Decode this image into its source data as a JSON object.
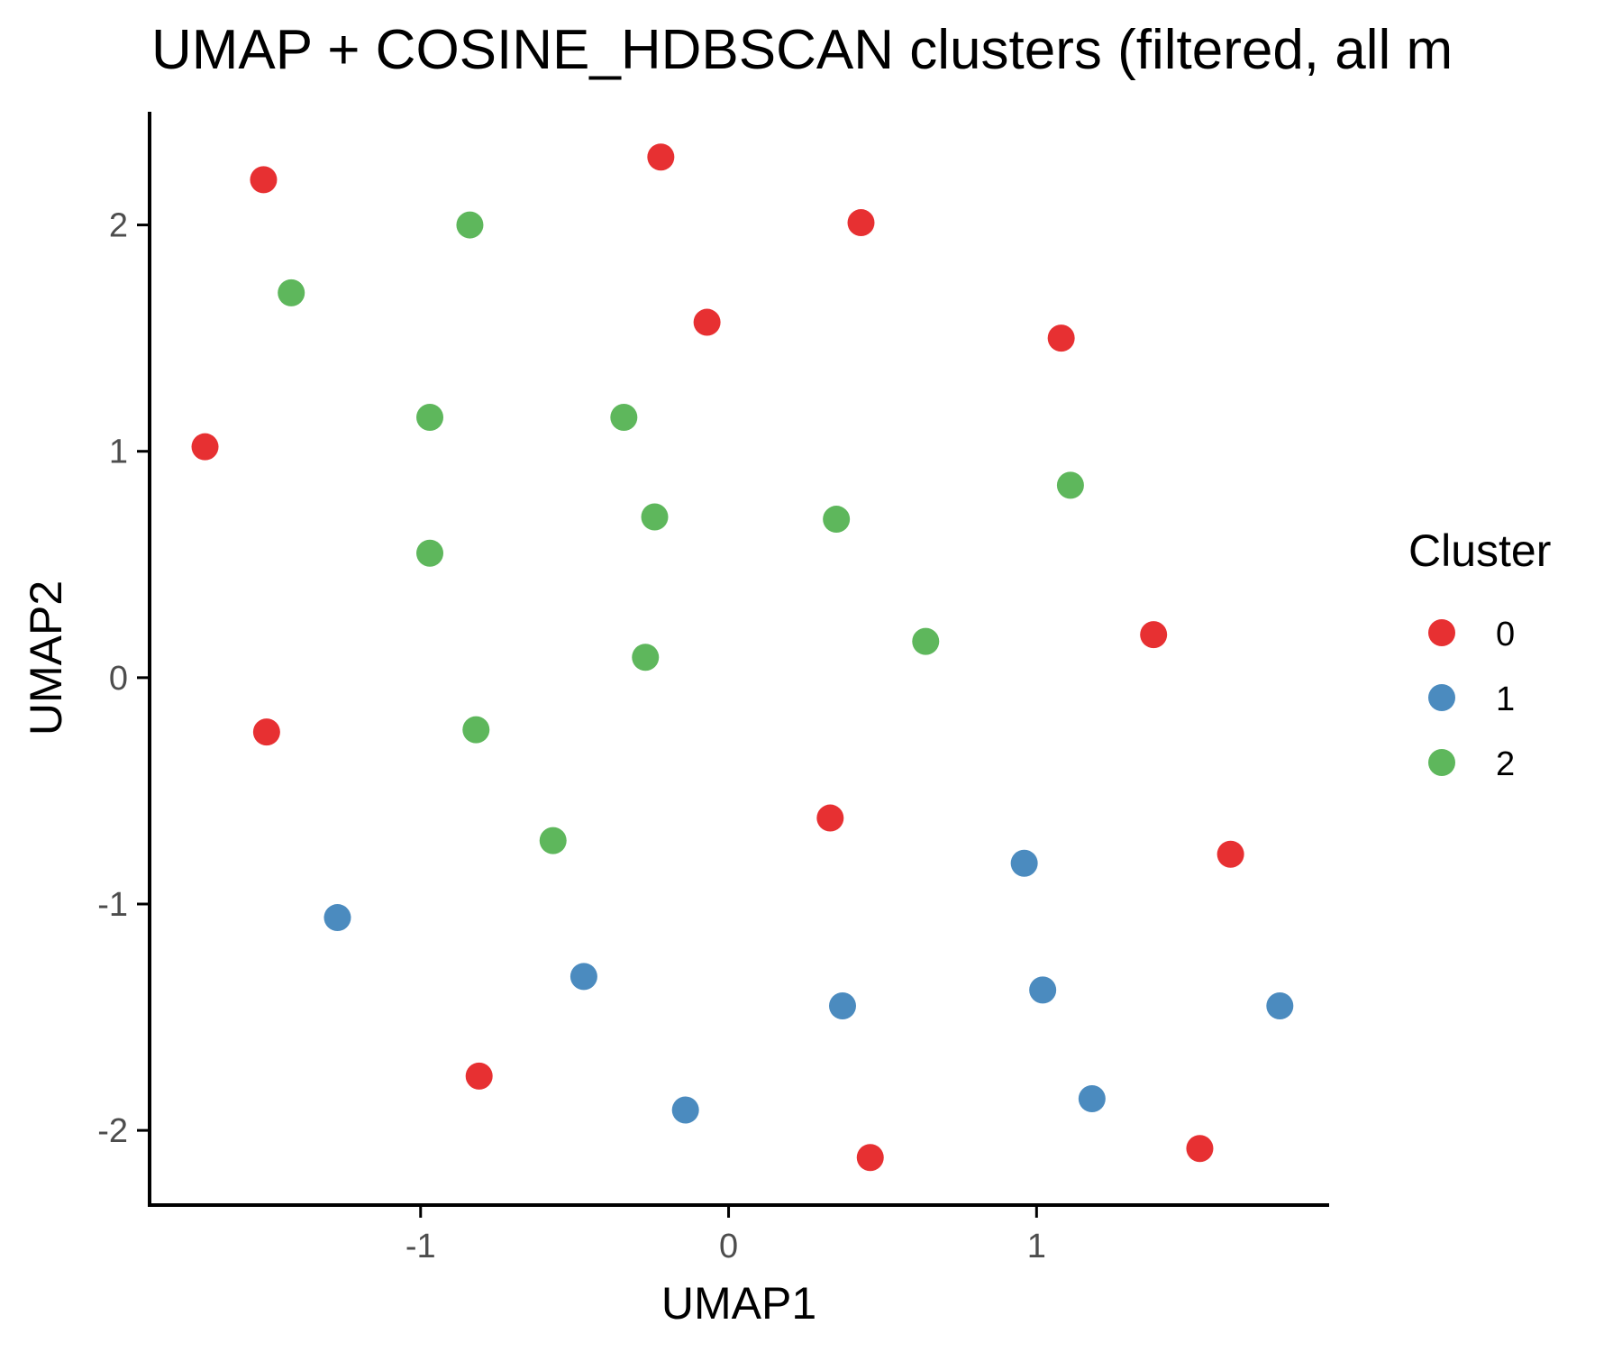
{
  "chart_data": {
    "type": "scatter",
    "title": "UMAP + COSINE_HDBSCAN clusters (filtered, all m",
    "xlabel": "UMAP1",
    "ylabel": "UMAP2",
    "xlim": [
      -1.88,
      1.95
    ],
    "ylim": [
      -2.33,
      2.5
    ],
    "xticks": [
      -1,
      0,
      1
    ],
    "yticks": [
      -2,
      -1,
      0,
      1,
      2
    ],
    "xtick_labels": [
      "-1",
      "0",
      "1"
    ],
    "ytick_labels": [
      "-2",
      "-1",
      "0",
      "1",
      "2"
    ],
    "grid": false,
    "legend": {
      "title": "Cluster",
      "position": "right",
      "entries": [
        {
          "label": "0",
          "color": "#e41a1c"
        },
        {
          "label": "1",
          "color": "#377eb8"
        },
        {
          "label": "2",
          "color": "#4daf4a"
        }
      ]
    },
    "series": [
      {
        "name": "0",
        "color": "#e41a1c",
        "points": [
          {
            "x": -1.51,
            "y": 2.2
          },
          {
            "x": -0.22,
            "y": 2.3
          },
          {
            "x": 0.43,
            "y": 2.01
          },
          {
            "x": -0.07,
            "y": 1.57
          },
          {
            "x": 1.08,
            "y": 1.5
          },
          {
            "x": -1.7,
            "y": 1.02
          },
          {
            "x": 1.38,
            "y": 0.19
          },
          {
            "x": -1.5,
            "y": -0.24
          },
          {
            "x": 0.33,
            "y": -0.62
          },
          {
            "x": 1.63,
            "y": -0.78
          },
          {
            "x": -0.81,
            "y": -1.76
          },
          {
            "x": 0.46,
            "y": -2.12
          },
          {
            "x": 1.53,
            "y": -2.08
          }
        ]
      },
      {
        "name": "1",
        "color": "#377eb8",
        "points": [
          {
            "x": 0.96,
            "y": -0.82
          },
          {
            "x": -1.27,
            "y": -1.06
          },
          {
            "x": -0.47,
            "y": -1.32
          },
          {
            "x": 0.37,
            "y": -1.45
          },
          {
            "x": 1.02,
            "y": -1.38
          },
          {
            "x": 1.79,
            "y": -1.45
          },
          {
            "x": -0.14,
            "y": -1.91
          },
          {
            "x": 1.18,
            "y": -1.86
          }
        ]
      },
      {
        "name": "2",
        "color": "#4daf4a",
        "points": [
          {
            "x": -0.84,
            "y": 2.0
          },
          {
            "x": -1.42,
            "y": 1.7
          },
          {
            "x": -0.97,
            "y": 1.15
          },
          {
            "x": -0.34,
            "y": 1.15
          },
          {
            "x": 1.11,
            "y": 0.85
          },
          {
            "x": -0.24,
            "y": 0.71
          },
          {
            "x": 0.35,
            "y": 0.7
          },
          {
            "x": -0.97,
            "y": 0.55
          },
          {
            "x": -0.27,
            "y": 0.09
          },
          {
            "x": 0.64,
            "y": 0.16
          },
          {
            "x": -0.82,
            "y": -0.23
          },
          {
            "x": -0.57,
            "y": -0.72
          }
        ]
      }
    ]
  }
}
